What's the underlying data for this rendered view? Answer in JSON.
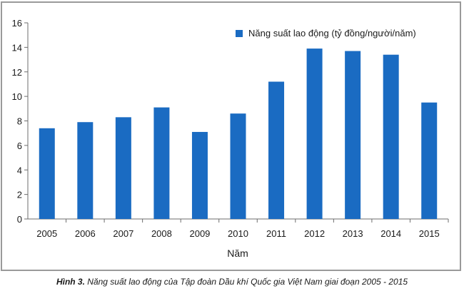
{
  "chart_data": {
    "type": "bar",
    "categories": [
      "2005",
      "2006",
      "2007",
      "2008",
      "2009",
      "2010",
      "2011",
      "2012",
      "2013",
      "2014",
      "2015"
    ],
    "series": [
      {
        "name": "Năng suất lao động (tỷ đồng/người/năm)",
        "values": [
          7.4,
          7.9,
          8.3,
          9.1,
          7.1,
          8.6,
          11.2,
          13.9,
          13.7,
          13.4,
          9.5
        ],
        "color": "#1a6bc2"
      }
    ],
    "xlabel": "Năm",
    "ylabel": "",
    "ylim": [
      0,
      16
    ],
    "yticks": [
      "0",
      "2",
      "4",
      "6",
      "8",
      "10",
      "12",
      "14",
      "16"
    ],
    "grid": false,
    "legend_position": "top-right"
  },
  "caption": {
    "lead": "Hình 3.",
    "text": " Năng suất lao động của Tập đoàn Dầu khí Quốc gia Việt Nam giai đoạn 2005 - 2015"
  }
}
